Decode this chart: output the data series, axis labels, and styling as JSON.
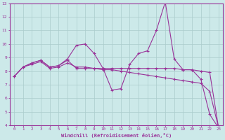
{
  "xlabel": "Windchill (Refroidissement éolien,°C)",
  "background_color": "#cce9e9",
  "line_color": "#993399",
  "grid_color": "#aacccc",
  "x_data": [
    0,
    1,
    2,
    3,
    4,
    5,
    6,
    7,
    8,
    9,
    10,
    11,
    12,
    13,
    14,
    15,
    16,
    17,
    18,
    19,
    20,
    21,
    22,
    23
  ],
  "line1": [
    7.6,
    8.3,
    8.6,
    8.8,
    8.3,
    8.4,
    8.9,
    9.9,
    10.0,
    9.3,
    8.2,
    6.6,
    6.7,
    8.5,
    9.3,
    9.5,
    11.0,
    13.1,
    8.9,
    8.1,
    8.1,
    7.4,
    4.8,
    3.8
  ],
  "line2": [
    7.6,
    8.3,
    8.6,
    8.8,
    8.3,
    8.4,
    8.8,
    8.2,
    8.2,
    8.2,
    8.2,
    8.2,
    8.2,
    8.2,
    8.2,
    8.2,
    8.2,
    8.2,
    8.2,
    8.1,
    8.1,
    8.0,
    7.9,
    3.8
  ],
  "line3": [
    7.6,
    8.3,
    8.5,
    8.7,
    8.2,
    8.3,
    8.6,
    8.3,
    8.3,
    8.2,
    8.1,
    8.1,
    8.0,
    7.9,
    7.8,
    7.7,
    7.6,
    7.5,
    7.4,
    7.3,
    7.2,
    7.1,
    6.5,
    3.8
  ],
  "ylim": [
    4,
    13
  ],
  "xlim": [
    -0.5,
    23.5
  ],
  "yticks": [
    4,
    5,
    6,
    7,
    8,
    9,
    10,
    11,
    12,
    13
  ],
  "xticks": [
    0,
    1,
    2,
    3,
    4,
    5,
    6,
    7,
    8,
    9,
    10,
    11,
    12,
    13,
    14,
    15,
    16,
    17,
    18,
    19,
    20,
    21,
    22,
    23
  ]
}
